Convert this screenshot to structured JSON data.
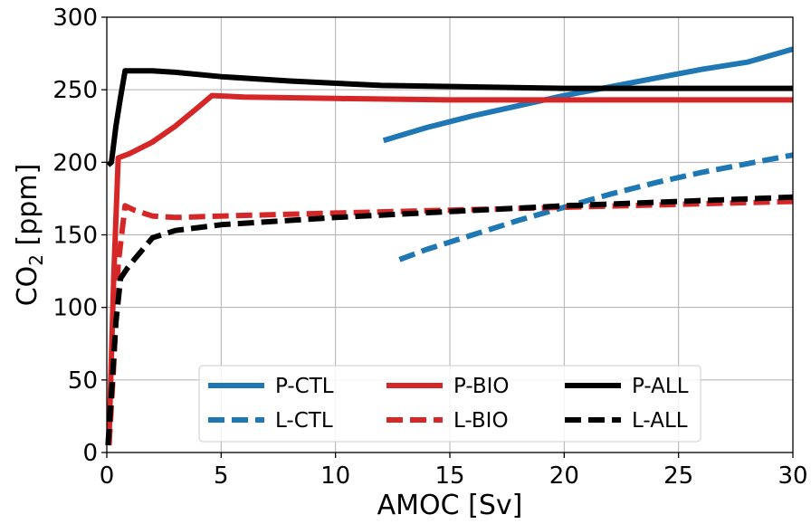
{
  "chart_data": {
    "type": "line",
    "title": "",
    "xlabel": "AMOC [Sv]",
    "ylabel_main": "CO",
    "ylabel_sub": "2",
    "ylabel_unit": " [ppm]",
    "xlim": [
      0,
      30
    ],
    "ylim": [
      0,
      300
    ],
    "xticks": [
      "0",
      "5",
      "10",
      "15",
      "20",
      "25",
      "30"
    ],
    "yticks": [
      "0",
      "50",
      "100",
      "150",
      "200",
      "250",
      "300"
    ],
    "grid": true,
    "legend_position": "lower-center",
    "series": [
      {
        "name": "P-CTL",
        "color": "#1f77b4",
        "dash": "solid",
        "x": [
          12.1,
          14,
          16,
          18,
          20,
          22,
          24,
          26,
          28,
          30
        ],
        "y": [
          215,
          224,
          232,
          239,
          246,
          252,
          258,
          264,
          269,
          278
        ]
      },
      {
        "name": "L-CTL",
        "color": "#1f77b4",
        "dash": "dashed",
        "x": [
          12.8,
          14,
          16,
          18,
          20,
          22,
          24,
          26,
          28,
          30
        ],
        "y": [
          133,
          140,
          150,
          160,
          169,
          178,
          186,
          193,
          199,
          205
        ]
      },
      {
        "name": "P-BIO",
        "color": "#d62728",
        "dash": "solid",
        "x": [
          0.1,
          0.3,
          0.5,
          1,
          2,
          3,
          4,
          4.6,
          6,
          10,
          15,
          20,
          25,
          30
        ],
        "y": [
          10,
          120,
          203,
          206,
          214,
          225,
          238,
          246,
          245,
          244,
          243,
          243,
          243,
          243
        ]
      },
      {
        "name": "L-BIO",
        "color": "#d62728",
        "dash": "dashed",
        "x": [
          0.1,
          0.3,
          0.5,
          0.8,
          1.2,
          2,
          3,
          5,
          10,
          15,
          20,
          25,
          30
        ],
        "y": [
          5,
          60,
          130,
          170,
          167,
          163,
          162,
          163,
          165,
          167,
          169,
          171,
          173
        ]
      },
      {
        "name": "P-ALL",
        "color": "#000000",
        "dash": "solid",
        "x": [
          0.05,
          0.2,
          0.4,
          0.6,
          0.8,
          1.2,
          2,
          3,
          5,
          8,
          12,
          16,
          20,
          25,
          30
        ],
        "y": [
          198,
          200,
          225,
          245,
          263,
          263,
          263,
          262,
          259,
          256,
          253,
          252,
          251,
          251,
          251
        ]
      },
      {
        "name": "L-ALL",
        "color": "#000000",
        "dash": "dashed",
        "x": [
          0.05,
          0.2,
          0.4,
          0.6,
          0.9,
          1.2,
          2,
          3,
          5,
          10,
          15,
          20,
          25,
          30
        ],
        "y": [
          5,
          40,
          90,
          120,
          127,
          133,
          148,
          153,
          157,
          162,
          166,
          170,
          173,
          176
        ]
      }
    ],
    "legend_rows": [
      [
        "P-CTL",
        "P-BIO",
        "P-ALL"
      ],
      [
        "L-CTL",
        "L-BIO",
        "L-ALL"
      ]
    ]
  }
}
